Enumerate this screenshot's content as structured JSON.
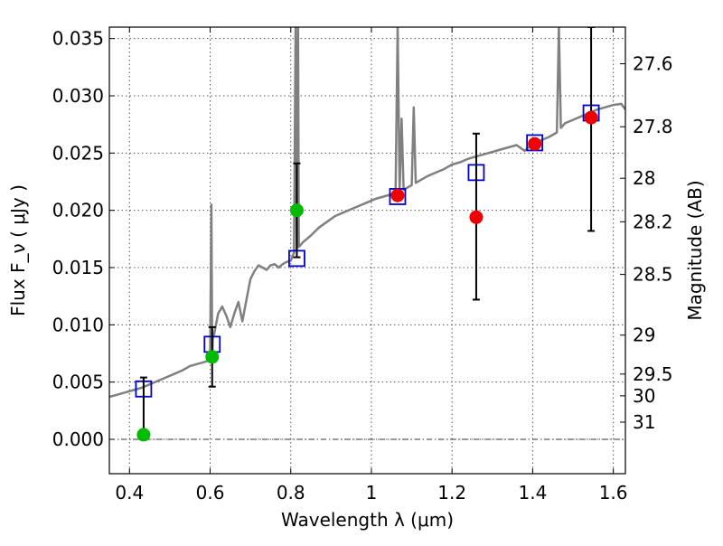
{
  "chart_data": {
    "type": "scatter",
    "xlabel": "Wavelength  λ (μm)",
    "ylabel": "Flux  F_ν  ( μJy )",
    "y2label": "Magnitude (AB)",
    "xlim": [
      0.35,
      1.63
    ],
    "ylim": [
      -0.003,
      0.036
    ],
    "grid": true,
    "x_ticks": [
      0.4,
      0.6,
      0.8,
      1.0,
      1.2,
      1.4,
      1.6
    ],
    "x_tick_labels": [
      "0.4",
      "0.6",
      "0.8",
      "1",
      "1.2",
      "1.4",
      "1.6"
    ],
    "y_ticks": [
      0.0,
      0.005,
      0.01,
      0.015,
      0.02,
      0.025,
      0.03,
      0.035
    ],
    "y_tick_labels": [
      "0.000",
      "0.005",
      "0.010",
      "0.015",
      "0.020",
      "0.025",
      "0.030",
      "0.035"
    ],
    "y2_ticks": [
      {
        "label": "27.6",
        "flux": 0.0328
      },
      {
        "label": "27.8",
        "flux": 0.0273
      },
      {
        "label": "28",
        "flux": 0.0228
      },
      {
        "label": "28.2",
        "flux": 0.019
      },
      {
        "label": "28.5",
        "flux": 0.0144
      },
      {
        "label": "29",
        "flux": 0.0091
      },
      {
        "label": "29.5",
        "flux": 0.0057
      },
      {
        "label": "30",
        "flux": 0.0038
      },
      {
        "label": "31",
        "flux": 0.0015
      }
    ],
    "reference_line_y": 0.0,
    "colors": {
      "spectrum": "#808080",
      "model_box": "#0000cc",
      "green_point": "#00bb00",
      "red_point": "#ee0000",
      "errorbar": "#000000",
      "grid": "#555555"
    },
    "spectrum": {
      "x": [
        0.35,
        0.37,
        0.39,
        0.41,
        0.43,
        0.45,
        0.47,
        0.49,
        0.51,
        0.53,
        0.55,
        0.57,
        0.59,
        0.6,
        0.603,
        0.605,
        0.607,
        0.61,
        0.62,
        0.63,
        0.64,
        0.65,
        0.66,
        0.67,
        0.68,
        0.69,
        0.7,
        0.71,
        0.72,
        0.73,
        0.74,
        0.75,
        0.76,
        0.77,
        0.78,
        0.79,
        0.8,
        0.808,
        0.812,
        0.815,
        0.818,
        0.82,
        0.83,
        0.85,
        0.87,
        0.89,
        0.91,
        0.93,
        0.95,
        0.97,
        0.99,
        1.01,
        1.03,
        1.05,
        1.06,
        1.065,
        1.07,
        1.075,
        1.08,
        1.09,
        1.1,
        1.105,
        1.11,
        1.12,
        1.14,
        1.16,
        1.18,
        1.2,
        1.22,
        1.24,
        1.26,
        1.28,
        1.3,
        1.32,
        1.34,
        1.36,
        1.38,
        1.4,
        1.42,
        1.44,
        1.45,
        1.46,
        1.465,
        1.47,
        1.48,
        1.5,
        1.52,
        1.54,
        1.56,
        1.58,
        1.6,
        1.62,
        1.63
      ],
      "y": [
        0.0037,
        0.0039,
        0.0041,
        0.0043,
        0.0045,
        0.0048,
        0.0051,
        0.0054,
        0.0057,
        0.006,
        0.0064,
        0.0066,
        0.0068,
        0.007,
        0.0205,
        0.007,
        0.009,
        0.0092,
        0.011,
        0.0116,
        0.0108,
        0.0098,
        0.011,
        0.012,
        0.0103,
        0.0122,
        0.014,
        0.0147,
        0.0152,
        0.015,
        0.0148,
        0.0152,
        0.0153,
        0.015,
        0.0153,
        0.0155,
        0.0156,
        0.0163,
        0.036,
        0.0165,
        0.036,
        0.0168,
        0.0172,
        0.0178,
        0.0185,
        0.019,
        0.0195,
        0.0198,
        0.0201,
        0.0204,
        0.0207,
        0.021,
        0.0212,
        0.0214,
        0.0216,
        0.036,
        0.0216,
        0.028,
        0.0218,
        0.022,
        0.0222,
        0.029,
        0.0224,
        0.0226,
        0.023,
        0.0233,
        0.0236,
        0.024,
        0.0242,
        0.0245,
        0.0247,
        0.0249,
        0.0251,
        0.0253,
        0.0255,
        0.0257,
        0.0252,
        0.0258,
        0.0261,
        0.0264,
        0.0266,
        0.0268,
        0.036,
        0.0272,
        0.0276,
        0.0279,
        0.0282,
        0.0285,
        0.0288,
        0.029,
        0.0292,
        0.0293,
        0.0288
      ]
    },
    "model_boxes": [
      {
        "x": 0.435,
        "y": 0.0044
      },
      {
        "x": 0.605,
        "y": 0.0083
      },
      {
        "x": 0.815,
        "y": 0.0158
      },
      {
        "x": 1.065,
        "y": 0.0212
      },
      {
        "x": 1.26,
        "y": 0.0233
      },
      {
        "x": 1.405,
        "y": 0.0259
      },
      {
        "x": 1.545,
        "y": 0.0285
      }
    ],
    "observed_points": [
      {
        "x": 0.435,
        "y": 0.0004,
        "yerr_low": 0.0004,
        "yerr_high": 0.005,
        "color": "green"
      },
      {
        "x": 0.605,
        "y": 0.0072,
        "yerr_low": 0.0026,
        "yerr_high": 0.0026,
        "color": "green"
      },
      {
        "x": 0.815,
        "y": 0.02,
        "yerr_low": 0.0041,
        "yerr_high": 0.0041,
        "color": "green"
      },
      {
        "x": 1.065,
        "y": 0.0213,
        "yerr_low": 0.0,
        "yerr_high": 0.0,
        "color": "red"
      },
      {
        "x": 1.26,
        "y": 0.0194,
        "yerr_low": 0.0072,
        "yerr_high": 0.0073,
        "color": "red"
      },
      {
        "x": 1.405,
        "y": 0.0258,
        "yerr_low": 0.0,
        "yerr_high": 0.0,
        "color": "red"
      },
      {
        "x": 1.545,
        "y": 0.0281,
        "yerr_low": 0.0099,
        "yerr_high": 0.0079,
        "color": "red"
      }
    ]
  }
}
